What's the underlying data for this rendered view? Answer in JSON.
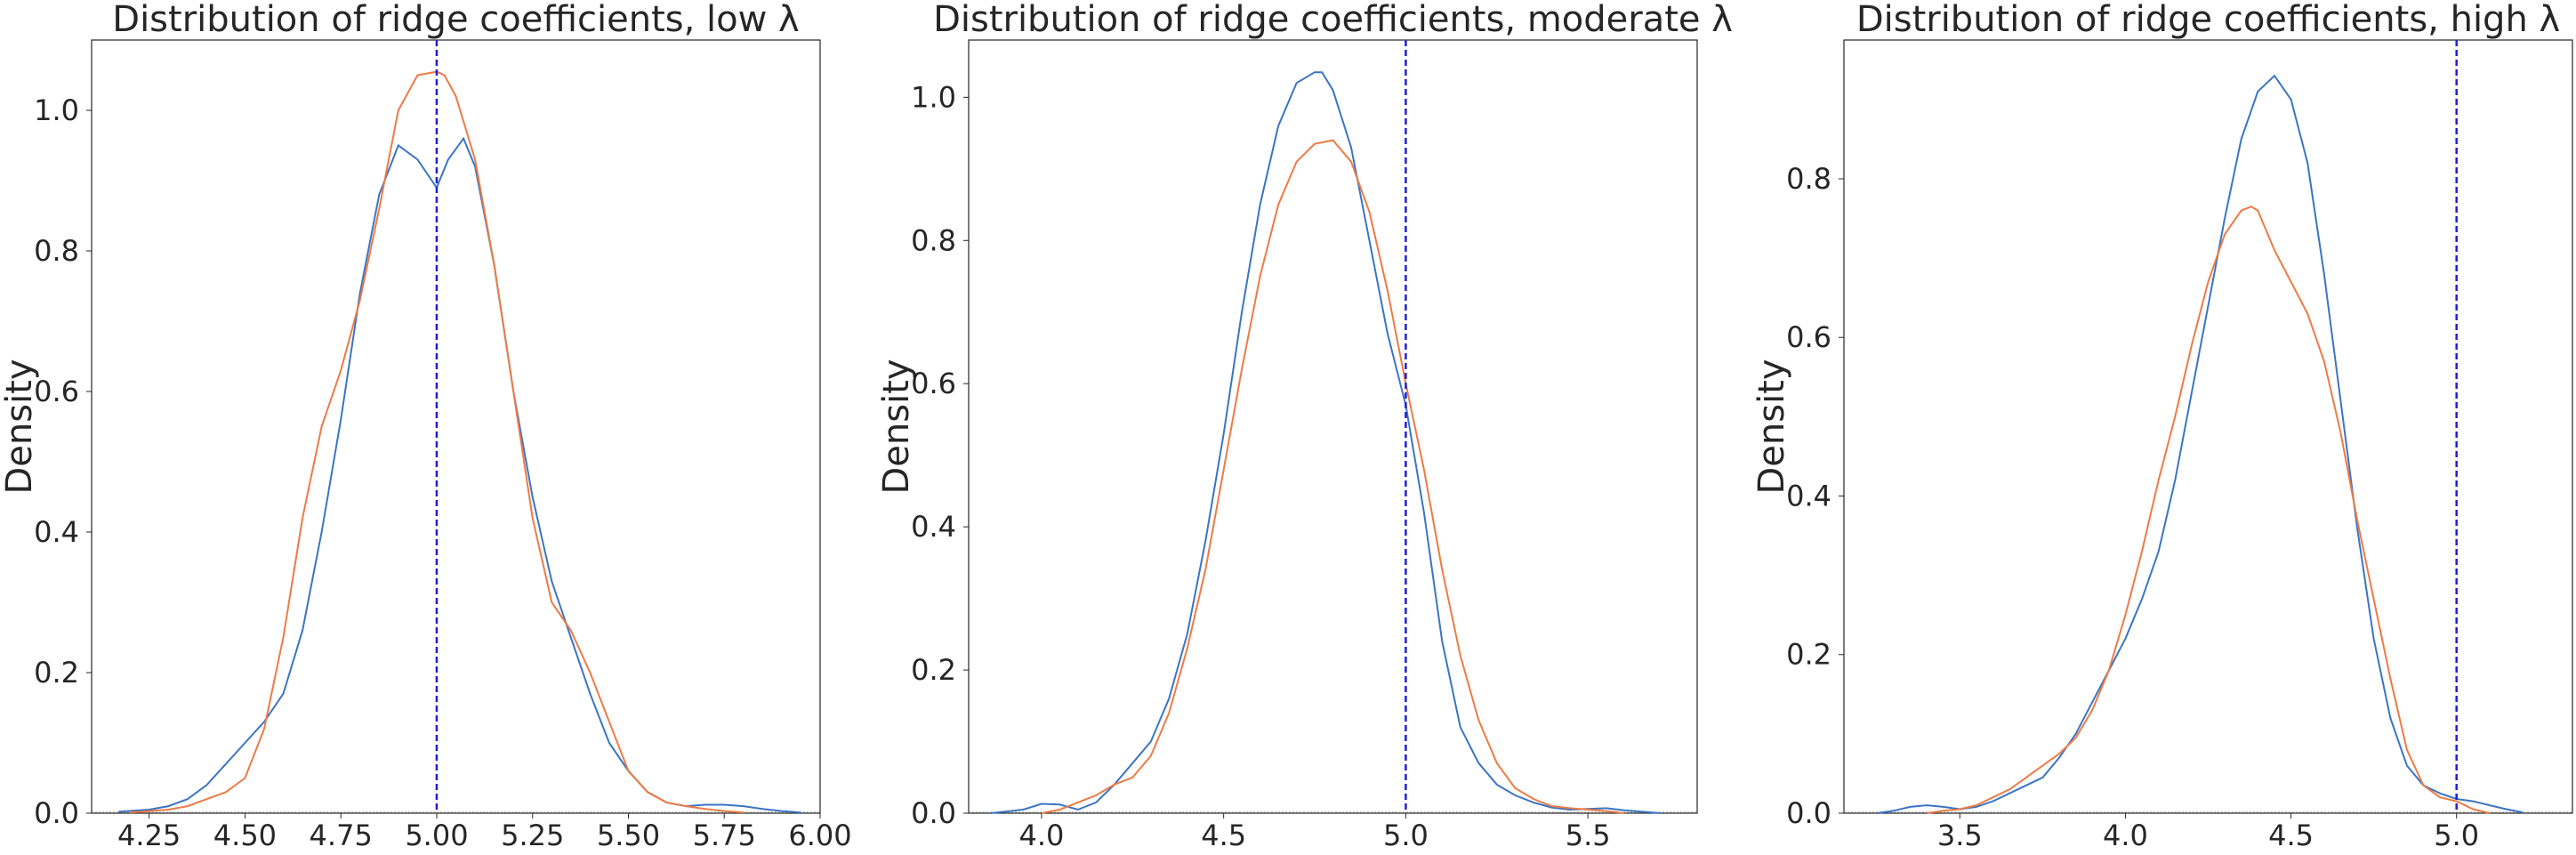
{
  "colors": {
    "series_a": "#3b75c4",
    "series_b": "#ee7a45",
    "reference_line": "#1f1fd6"
  },
  "chart_data": [
    {
      "type": "line",
      "title": "Distribution of ridge coefficients, low λ",
      "xlabel": "",
      "ylabel": "Density",
      "xlim": [
        4.1,
        6.0
      ],
      "ylim": [
        0,
        1.1
      ],
      "xticks": [
        "4.25",
        "4.50",
        "4.75",
        "5.00",
        "5.25",
        "5.50",
        "5.75",
        "6.00"
      ],
      "yticks": [
        "0.0",
        "0.2",
        "0.4",
        "0.6",
        "0.8",
        "1.0"
      ],
      "reference_x": 5.0,
      "grid": false,
      "legend": "none",
      "series": [
        {
          "color": "#3b75c4",
          "x": [
            4.17,
            4.25,
            4.3,
            4.35,
            4.4,
            4.45,
            4.5,
            4.55,
            4.6,
            4.65,
            4.7,
            4.75,
            4.8,
            4.85,
            4.9,
            4.95,
            5.0,
            5.03,
            5.07,
            5.1,
            5.15,
            5.2,
            5.25,
            5.3,
            5.35,
            5.4,
            5.45,
            5.5,
            5.55,
            5.6,
            5.65,
            5.7,
            5.75,
            5.8,
            5.85,
            5.9,
            5.95
          ],
          "y": [
            0.002,
            0.005,
            0.01,
            0.02,
            0.04,
            0.07,
            0.1,
            0.13,
            0.17,
            0.26,
            0.4,
            0.56,
            0.74,
            0.88,
            0.95,
            0.93,
            0.89,
            0.93,
            0.96,
            0.92,
            0.78,
            0.6,
            0.45,
            0.33,
            0.25,
            0.17,
            0.1,
            0.06,
            0.03,
            0.015,
            0.01,
            0.012,
            0.012,
            0.01,
            0.006,
            0.003,
            0.001
          ]
        },
        {
          "color": "#ee7a45",
          "x": [
            4.2,
            4.3,
            4.35,
            4.4,
            4.45,
            4.5,
            4.55,
            4.6,
            4.65,
            4.7,
            4.75,
            4.8,
            4.85,
            4.9,
            4.95,
            5.0,
            5.02,
            5.05,
            5.1,
            5.15,
            5.2,
            5.25,
            5.3,
            5.35,
            5.4,
            5.45,
            5.5,
            5.55,
            5.6,
            5.65,
            5.7,
            5.75,
            5.8
          ],
          "y": [
            0.001,
            0.005,
            0.01,
            0.02,
            0.03,
            0.05,
            0.12,
            0.25,
            0.42,
            0.55,
            0.63,
            0.73,
            0.86,
            1.0,
            1.05,
            1.055,
            1.05,
            1.02,
            0.93,
            0.78,
            0.6,
            0.42,
            0.3,
            0.26,
            0.2,
            0.13,
            0.06,
            0.03,
            0.015,
            0.01,
            0.006,
            0.003,
            0.001
          ]
        }
      ]
    },
    {
      "type": "line",
      "title": "Distribution of ridge coefficients, moderate λ",
      "xlabel": "",
      "ylabel": "Density",
      "xlim": [
        3.8,
        5.8
      ],
      "ylim": [
        0,
        1.08
      ],
      "xticks": [
        "4.0",
        "4.5",
        "5.0",
        "5.5"
      ],
      "yticks": [
        "0.0",
        "0.2",
        "0.4",
        "0.6",
        "0.8",
        "1.0"
      ],
      "reference_x": 5.0,
      "grid": false,
      "legend": "none",
      "series": [
        {
          "color": "#3b75c4",
          "x": [
            3.86,
            3.95,
            4.0,
            4.05,
            4.1,
            4.15,
            4.2,
            4.25,
            4.3,
            4.35,
            4.4,
            4.45,
            4.5,
            4.55,
            4.6,
            4.65,
            4.7,
            4.75,
            4.77,
            4.8,
            4.85,
            4.9,
            4.95,
            5.0,
            5.05,
            5.1,
            5.15,
            5.2,
            5.25,
            5.3,
            5.35,
            5.4,
            5.45,
            5.5,
            5.55,
            5.6,
            5.65,
            5.7
          ],
          "y": [
            0.0,
            0.005,
            0.013,
            0.012,
            0.005,
            0.015,
            0.04,
            0.07,
            0.1,
            0.16,
            0.25,
            0.38,
            0.53,
            0.7,
            0.85,
            0.96,
            1.02,
            1.035,
            1.035,
            1.01,
            0.93,
            0.8,
            0.67,
            0.57,
            0.42,
            0.24,
            0.12,
            0.07,
            0.04,
            0.025,
            0.015,
            0.008,
            0.005,
            0.006,
            0.007,
            0.004,
            0.002,
            0.0
          ]
        },
        {
          "color": "#ee7a45",
          "x": [
            4.0,
            4.05,
            4.1,
            4.15,
            4.2,
            4.25,
            4.3,
            4.35,
            4.4,
            4.45,
            4.5,
            4.55,
            4.6,
            4.65,
            4.7,
            4.75,
            4.8,
            4.85,
            4.9,
            4.95,
            5.0,
            5.05,
            5.1,
            5.15,
            5.2,
            5.25,
            5.3,
            5.35,
            5.4,
            5.45,
            5.5,
            5.55,
            5.6
          ],
          "y": [
            0.0,
            0.005,
            0.015,
            0.025,
            0.04,
            0.05,
            0.08,
            0.14,
            0.23,
            0.34,
            0.48,
            0.62,
            0.75,
            0.85,
            0.91,
            0.935,
            0.94,
            0.91,
            0.84,
            0.73,
            0.6,
            0.48,
            0.34,
            0.22,
            0.13,
            0.07,
            0.035,
            0.02,
            0.01,
            0.007,
            0.005,
            0.003,
            0.0
          ]
        }
      ]
    },
    {
      "type": "line",
      "title": "Distribution of ridge coefficients, high λ",
      "xlabel": "",
      "ylabel": "Density",
      "xlim": [
        3.15,
        5.35
      ],
      "ylim": [
        0,
        0.975
      ],
      "xticks": [
        "3.5",
        "4.0",
        "4.5",
        "5.0"
      ],
      "yticks": [
        "0.0",
        "0.2",
        "0.4",
        "0.6",
        "0.8"
      ],
      "reference_x": 5.0,
      "grid": false,
      "legend": "none",
      "series": [
        {
          "color": "#3b75c4",
          "x": [
            3.25,
            3.3,
            3.35,
            3.4,
            3.45,
            3.5,
            3.55,
            3.6,
            3.65,
            3.7,
            3.75,
            3.8,
            3.85,
            3.9,
            3.95,
            4.0,
            4.05,
            4.1,
            4.15,
            4.2,
            4.25,
            4.3,
            4.35,
            4.4,
            4.45,
            4.5,
            4.55,
            4.6,
            4.65,
            4.7,
            4.75,
            4.8,
            4.85,
            4.9,
            4.95,
            5.0,
            5.05,
            5.1,
            5.15,
            5.2
          ],
          "y": [
            0.0,
            0.003,
            0.008,
            0.01,
            0.008,
            0.005,
            0.008,
            0.015,
            0.025,
            0.035,
            0.045,
            0.07,
            0.1,
            0.14,
            0.18,
            0.22,
            0.27,
            0.33,
            0.42,
            0.53,
            0.64,
            0.75,
            0.85,
            0.91,
            0.93,
            0.9,
            0.82,
            0.68,
            0.52,
            0.36,
            0.22,
            0.12,
            0.06,
            0.035,
            0.025,
            0.018,
            0.015,
            0.01,
            0.005,
            0.001
          ]
        },
        {
          "color": "#ee7a45",
          "x": [
            3.4,
            3.45,
            3.5,
            3.55,
            3.6,
            3.65,
            3.7,
            3.75,
            3.8,
            3.85,
            3.9,
            3.95,
            4.0,
            4.05,
            4.1,
            4.15,
            4.2,
            4.25,
            4.3,
            4.35,
            4.38,
            4.4,
            4.45,
            4.5,
            4.55,
            4.6,
            4.65,
            4.7,
            4.75,
            4.8,
            4.85,
            4.9,
            4.95,
            5.0,
            5.05,
            5.1
          ],
          "y": [
            0.0,
            0.003,
            0.005,
            0.01,
            0.02,
            0.03,
            0.045,
            0.06,
            0.075,
            0.095,
            0.13,
            0.18,
            0.25,
            0.33,
            0.42,
            0.5,
            0.59,
            0.67,
            0.73,
            0.76,
            0.765,
            0.76,
            0.71,
            0.67,
            0.63,
            0.57,
            0.48,
            0.37,
            0.27,
            0.17,
            0.08,
            0.035,
            0.02,
            0.015,
            0.005,
            0.0
          ]
        }
      ]
    }
  ]
}
